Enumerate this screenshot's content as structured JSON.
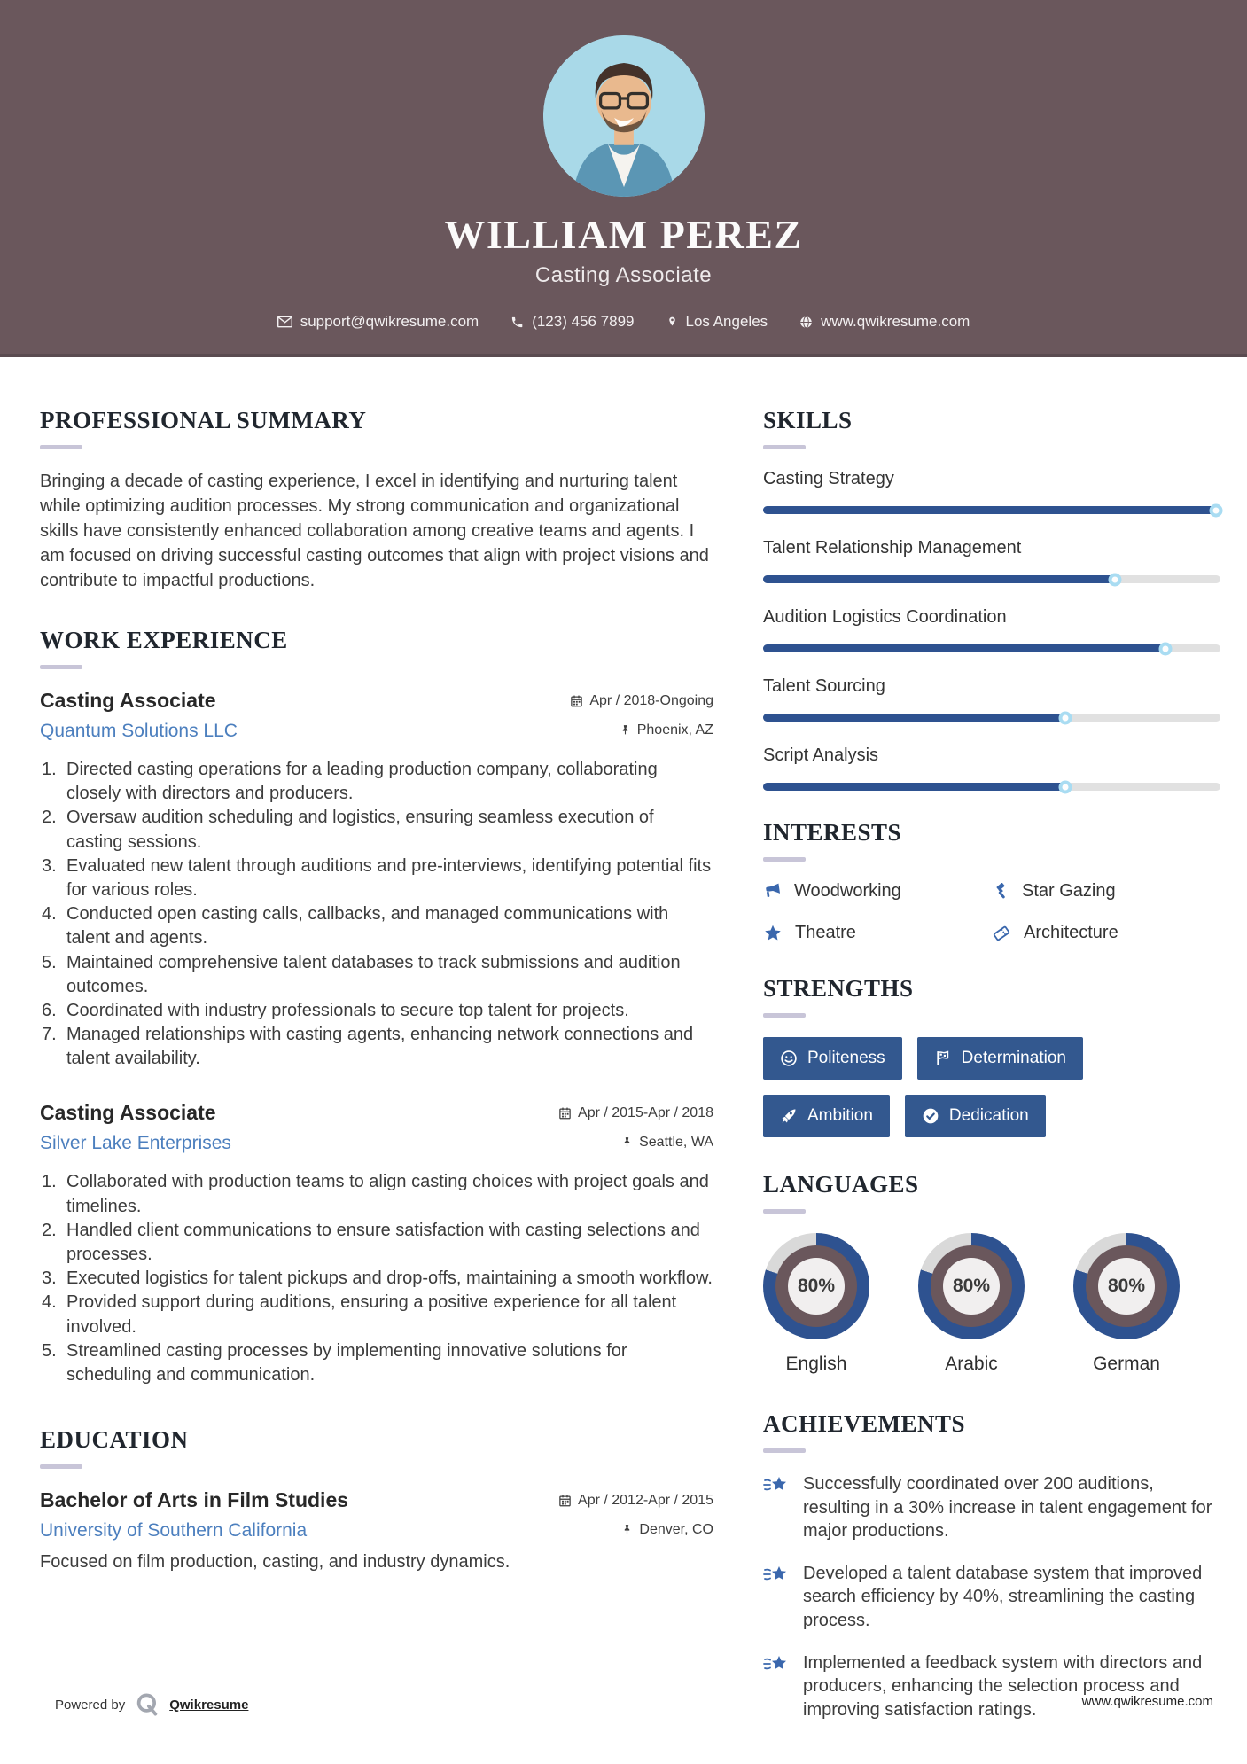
{
  "header": {
    "name": "WILLIAM PEREZ",
    "title": "Casting Associate",
    "contact": {
      "email": "support@qwikresume.com",
      "phone": "(123) 456 7899",
      "location": "Los Angeles",
      "website": "www.qwikresume.com"
    }
  },
  "main": {
    "summary": {
      "heading": "PROFESSIONAL SUMMARY",
      "text": "Bringing a decade of casting experience, I excel in identifying and nurturing talent while optimizing audition processes. My strong communication and organizational skills have consistently enhanced collaboration among creative teams and agents. I am focused on driving successful casting outcomes that align with project visions and contribute to impactful productions."
    },
    "work": {
      "heading": "WORK EXPERIENCE",
      "jobs": [
        {
          "title": "Casting Associate",
          "company": "Quantum Solutions LLC",
          "dates": "Apr / 2018-Ongoing",
          "location": "Phoenix, AZ",
          "bullets": [
            "Directed casting operations for a leading production company, collaborating closely with directors and producers.",
            "Oversaw audition scheduling and logistics, ensuring seamless execution of casting sessions.",
            "Evaluated new talent through auditions and pre-interviews, identifying potential fits for various roles.",
            "Conducted open casting calls, callbacks, and managed communications with talent and agents.",
            "Maintained comprehensive talent databases to track submissions and audition outcomes.",
            "Coordinated with industry professionals to secure top talent for projects.",
            "Managed relationships with casting agents, enhancing network connections and talent availability."
          ]
        },
        {
          "title": "Casting Associate",
          "company": "Silver Lake Enterprises",
          "dates": "Apr / 2015-Apr / 2018",
          "location": "Seattle, WA",
          "bullets": [
            "Collaborated with production teams to align casting choices with project goals and timelines.",
            "Handled client communications to ensure satisfaction with casting selections and processes.",
            "Executed logistics for talent pickups and drop-offs, maintaining a smooth workflow.",
            "Provided support during auditions, ensuring a positive experience for all talent involved.",
            "Streamlined casting processes by implementing innovative solutions for scheduling and communication."
          ]
        }
      ]
    },
    "education": {
      "heading": "EDUCATION",
      "degree": "Bachelor of Arts in Film Studies",
      "school": "University of Southern California",
      "dates": "Apr / 2012-Apr / 2015",
      "location": "Denver, CO",
      "note": "Focused on film production, casting, and industry dynamics."
    }
  },
  "sidebar": {
    "skills": {
      "heading": "SKILLS",
      "items": [
        {
          "label": "Casting Strategy",
          "percent": 99
        },
        {
          "label": "Talent Relationship Management",
          "percent": 77
        },
        {
          "label": "Audition Logistics Coordination",
          "percent": 88
        },
        {
          "label": "Talent Sourcing",
          "percent": 66
        },
        {
          "label": "Script Analysis",
          "percent": 66
        }
      ]
    },
    "interests": {
      "heading": "INTERESTS",
      "items": [
        {
          "label": "Woodworking",
          "icon": "megaphone-icon"
        },
        {
          "label": "Star Gazing",
          "icon": "gavel-icon"
        },
        {
          "label": "Theatre",
          "icon": "star-icon"
        },
        {
          "label": "Architecture",
          "icon": "ticket-icon"
        }
      ]
    },
    "strengths": {
      "heading": "STRENGTHS",
      "items": [
        {
          "label": "Politeness",
          "icon": "smiley-icon"
        },
        {
          "label": "Determination",
          "icon": "flag-icon"
        },
        {
          "label": "Ambition",
          "icon": "rocket-icon"
        },
        {
          "label": "Dedication",
          "icon": "check-circle-icon"
        }
      ]
    },
    "languages": {
      "heading": "LANGUAGES",
      "items": [
        {
          "label": "English",
          "percent": 80,
          "percent_label": "80%"
        },
        {
          "label": "Arabic",
          "percent": 80,
          "percent_label": "80%"
        },
        {
          "label": "German",
          "percent": 80,
          "percent_label": "80%"
        }
      ]
    },
    "achievements": {
      "heading": "ACHIEVEMENTS",
      "items": [
        {
          "text": "Successfully coordinated over 200 auditions, resulting in a 30% increase in talent engagement for major productions."
        },
        {
          "text": "Developed a talent database system that improved search efficiency by 40%, streamlining the casting process."
        },
        {
          "text": "Implemented a feedback system with directors and producers, enhancing the selection process and improving satisfaction ratings."
        }
      ]
    }
  },
  "footer": {
    "powered_by": "Powered by",
    "brand": "Qwikresume",
    "website": "www.qwikresume.com"
  },
  "colors": {
    "header_bg": "#6a575c",
    "accent_blue": "#2e5290",
    "badge_blue": "#33588f",
    "link_blue": "#4c7fbe",
    "photo_bg": "#a9d9e8",
    "track_gray": "#e1e1e1",
    "donut_gap_gray": "#d9d9d9"
  }
}
